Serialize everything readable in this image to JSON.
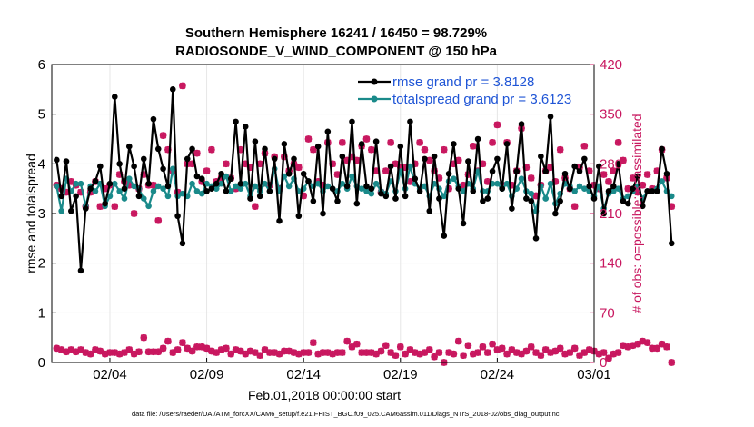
{
  "chart_data": {
    "type": "line",
    "title_line1": "Southern Hemisphere 16241 / 16450 = 98.729%",
    "title_line2": "RADIOSONDE_V_WIND_COMPONENT @ 150 hPa",
    "xlabel": "Feb.01,2018 00:00:00 start",
    "ylabel_left": "rmse and totalspread",
    "ylabel_right": "# of obs: o=possible; ×=assimilated",
    "footnote": "data file: /Users/raeder/DAI/ATM_forcXX/CAM6_setup/f.e21.FHIST_BGC.f09_025.CAM6assim.011/Diags_NTrS_2018-02/obs_diag_output.nc",
    "xlim": [
      0,
      28
    ],
    "ylim_left": [
      0,
      6
    ],
    "ylim_right": [
      0,
      420
    ],
    "x_ticks": [
      {
        "x": 3,
        "label": "02/04"
      },
      {
        "x": 8,
        "label": "02/09"
      },
      {
        "x": 13,
        "label": "02/14"
      },
      {
        "x": 18,
        "label": "02/19"
      },
      {
        "x": 23,
        "label": "02/24"
      },
      {
        "x": 28,
        "label": "03/01"
      }
    ],
    "y_ticks_left": [
      {
        "v": 0,
        "label": "0"
      },
      {
        "v": 1,
        "label": "1"
      },
      {
        "v": 2,
        "label": "2"
      },
      {
        "v": 3,
        "label": "3"
      },
      {
        "v": 4,
        "label": "4"
      },
      {
        "v": 5,
        "label": "5"
      },
      {
        "v": 6,
        "label": "6"
      }
    ],
    "y_ticks_right": [
      {
        "v": 0,
        "label": "0"
      },
      {
        "v": 70,
        "label": "70"
      },
      {
        "v": 140,
        "label": "140"
      },
      {
        "v": 210,
        "label": "210"
      },
      {
        "v": 280,
        "label": "280"
      },
      {
        "v": 350,
        "label": "350"
      },
      {
        "v": 420,
        "label": "420"
      }
    ],
    "colors": {
      "rmse": "#000000",
      "spread": "#1a8a8a",
      "obs": "#c8175f",
      "legend_text": "#1f55d6"
    },
    "legend": [
      {
        "name": "rmse",
        "label": "rmse grand pr = 3.8128"
      },
      {
        "name": "totalspread",
        "label": "totalspread grand pr = 3.6123"
      }
    ],
    "series": [
      {
        "name": "rmse",
        "x_start": 0.25,
        "x_step": 0.25,
        "values": [
          4.08,
          3.35,
          4.05,
          3.05,
          3.35,
          1.85,
          3.1,
          3.5,
          3.65,
          3.95,
          3.2,
          3.6,
          5.35,
          4.0,
          3.5,
          4.35,
          3.95,
          3.35,
          4.1,
          3.6,
          4.9,
          4.3,
          3.9,
          3.55,
          5.5,
          2.95,
          2.4,
          4.1,
          4.3,
          3.75,
          3.7,
          3.45,
          3.5,
          3.6,
          3.8,
          3.45,
          3.7,
          4.85,
          3.6,
          4.75,
          3.3,
          4.45,
          3.35,
          4.3,
          3.45,
          4.1,
          2.85,
          4.4,
          3.8,
          4.1,
          2.95,
          3.8,
          3.65,
          3.25,
          4.35,
          3.0,
          4.65,
          3.5,
          3.25,
          4.15,
          3.55,
          4.85,
          3.2,
          4.4,
          3.55,
          3.5,
          4.45,
          3.4,
          3.35,
          3.95,
          3.3,
          4.35,
          3.35,
          4.85,
          3.7,
          3.45,
          4.1,
          3.05,
          4.15,
          3.3,
          2.55,
          3.8,
          4.4,
          3.5,
          2.8,
          4.05,
          3.45,
          4.5,
          3.25,
          3.3,
          3.85,
          4.1,
          3.5,
          4.4,
          3.1,
          3.85,
          4.8,
          3.3,
          3.25,
          2.5,
          4.15,
          3.85,
          4.95,
          3.0,
          3.25,
          3.8,
          3.5,
          3.95,
          3.85,
          4.1,
          3.55,
          3.3,
          3.95,
          3.0,
          3.45,
          3.55,
          4.0,
          3.25,
          3.2,
          3.5,
          3.75,
          3.15,
          3.45,
          3.45,
          3.45,
          4.3,
          3.8,
          2.4
        ]
      },
      {
        "name": "totalspread",
        "x_start": 0.25,
        "x_step": 0.25,
        "values": [
          3.55,
          3.05,
          3.7,
          3.45,
          3.6,
          3.6,
          3.15,
          3.55,
          3.45,
          3.6,
          3.15,
          3.35,
          3.6,
          3.45,
          3.3,
          3.7,
          3.55,
          3.5,
          3.3,
          3.15,
          3.45,
          3.55,
          3.5,
          3.35,
          3.9,
          3.35,
          3.4,
          3.35,
          3.6,
          3.45,
          3.4,
          3.6,
          3.55,
          3.5,
          3.6,
          3.75,
          3.45,
          3.55,
          3.5,
          3.6,
          3.35,
          3.55,
          3.45,
          3.6,
          3.45,
          3.9,
          3.45,
          3.75,
          3.55,
          3.7,
          3.45,
          3.5,
          3.65,
          3.55,
          3.6,
          3.45,
          3.55,
          3.5,
          3.45,
          3.6,
          3.5,
          3.75,
          3.55,
          3.5,
          3.45,
          3.4,
          3.6,
          3.45,
          3.4,
          3.65,
          3.45,
          3.85,
          3.5,
          3.95,
          3.6,
          3.5,
          3.55,
          3.35,
          3.6,
          3.5,
          3.35,
          3.65,
          3.7,
          3.55,
          3.45,
          3.6,
          3.5,
          3.85,
          3.45,
          3.45,
          3.6,
          3.6,
          3.5,
          3.6,
          3.35,
          3.5,
          3.7,
          3.45,
          3.4,
          3.05,
          3.55,
          3.3,
          3.6,
          3.2,
          3.4,
          3.6,
          3.55,
          3.45,
          3.55,
          3.5,
          3.45,
          3.35,
          3.55,
          3.1,
          3.4,
          3.45,
          3.5,
          3.3,
          3.35,
          3.45,
          3.55,
          3.3,
          3.45,
          3.45,
          3.5,
          3.65,
          3.45,
          3.35
        ]
      }
    ],
    "obs_counts": {
      "note": "possible (o) and assimilated (x) counts per time, right axis",
      "x_start": 0.25,
      "x_step": 0.25,
      "upper": [
        250,
        245,
        240,
        255,
        250,
        240,
        220,
        240,
        255,
        220,
        245,
        250,
        220,
        265,
        255,
        250,
        210,
        245,
        265,
        250,
        250,
        200,
        320,
        300,
        270,
        240,
        390,
        280,
        280,
        295,
        255,
        270,
        300,
        255,
        260,
        280,
        260,
        245,
        300,
        280,
        275,
        220,
        280,
        295,
        250,
        290,
        245,
        290,
        270,
        280,
        275,
        235,
        315,
        300,
        255,
        250,
        310,
        280,
        265,
        310,
        285,
        290,
        285,
        305,
        315,
        300,
        270,
        240,
        270,
        310,
        280,
        275,
        275,
        255,
        280,
        310,
        300,
        285,
        270,
        260,
        300,
        245,
        280,
        285,
        250,
        265,
        305,
        270,
        280,
        255,
        310,
        335,
        250,
        310,
        250,
        270,
        330,
        275,
        260,
        235,
        250,
        270,
        275,
        255,
        300,
        260,
        245,
        220,
        275,
        305,
        270,
        250,
        245,
        265,
        255,
        270,
        310,
        285,
        245,
        260,
        240,
        250,
        265,
        245,
        270,
        300,
        260,
        220
      ],
      "lower": [
        20,
        18,
        15,
        18,
        15,
        18,
        14,
        12,
        18,
        16,
        12,
        14,
        14,
        12,
        14,
        18,
        12,
        15,
        35,
        15,
        15,
        15,
        20,
        30,
        14,
        18,
        28,
        20,
        16,
        22,
        22,
        20,
        16,
        14,
        18,
        20,
        12,
        18,
        16,
        12,
        16,
        14,
        10,
        18,
        14,
        14,
        12,
        16,
        16,
        14,
        12,
        14,
        14,
        28,
        12,
        14,
        14,
        12,
        14,
        14,
        30,
        22,
        26,
        14,
        14,
        14,
        12,
        16,
        24,
        14,
        10,
        22,
        12,
        18,
        14,
        12,
        14,
        18,
        8,
        14,
        0,
        14,
        12,
        30,
        10,
        24,
        12,
        14,
        22,
        14,
        26,
        18,
        20,
        12,
        18,
        14,
        12,
        16,
        22,
        14,
        10,
        18,
        14,
        16,
        20,
        12,
        14,
        20,
        10,
        14,
        18,
        16,
        12,
        14,
        6,
        12,
        14,
        24,
        22,
        24,
        26,
        30,
        28,
        20,
        20,
        26,
        22,
        0
      ]
    }
  }
}
